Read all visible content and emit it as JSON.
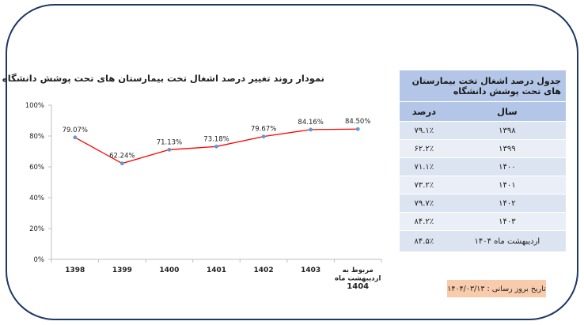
{
  "chart_data": {
    "type": "line",
    "title": "نمودار روند تغییر درصد اشغال تخت بیمارستان های تحت پوشش دانشگاه",
    "categories": [
      "1398",
      "1399",
      "1400",
      "1401",
      "1402",
      "1403",
      "مربوط به اردیبهشت ماه 1404"
    ],
    "category_lines": [
      [
        "1398"
      ],
      [
        "1399"
      ],
      [
        "1400"
      ],
      [
        "1401"
      ],
      [
        "1402"
      ],
      [
        "1403"
      ],
      [
        "مربوط به",
        "اردیبهشت ماه",
        "1404"
      ]
    ],
    "series": [
      {
        "values": [
          79.07,
          62.24,
          71.13,
          73.18,
          79.67,
          84.16,
          84.5
        ],
        "labels": [
          "79.07%",
          "62.24%",
          "71.13%",
          "73.18%",
          "79.67%",
          "84.16%",
          "84.50%"
        ],
        "color": "#ff0000",
        "marker_color": "#5b9bd5"
      }
    ],
    "ylim": [
      0,
      100
    ],
    "yticks": [
      0,
      20,
      40,
      60,
      80,
      100
    ],
    "ytick_labels": [
      "0%",
      "20%",
      "40%",
      "60%",
      "80%",
      "100%"
    ],
    "grid": false,
    "legend": "none",
    "xlabel": "",
    "ylabel": ""
  },
  "table": {
    "title": "جدول درصد  اشغال تخت بیمارستان های تحت پوشش دانشگاه",
    "col_year": "سال",
    "col_percent": "درصد",
    "rows": [
      {
        "year": "۱۳۹۸",
        "percent": "۷۹.۱٪"
      },
      {
        "year": "۱۳۹۹",
        "percent": "۶۲.۲٪"
      },
      {
        "year": "۱۴۰۰",
        "percent": "۷۱.۱٪"
      },
      {
        "year": "۱۴۰۱",
        "percent": "۷۳.۲٪"
      },
      {
        "year": "۱۴۰۲",
        "percent": "۷۹.۷٪"
      },
      {
        "year": "۱۴۰۳",
        "percent": "۸۴.۲٪"
      },
      {
        "year": "اردیبهشت ماه ۱۴۰۴",
        "percent": "۸۴.۵٪"
      }
    ]
  },
  "update_note": "تاریخ بروز رسانی : ۱۴۰۴/۰۳/۱۳"
}
